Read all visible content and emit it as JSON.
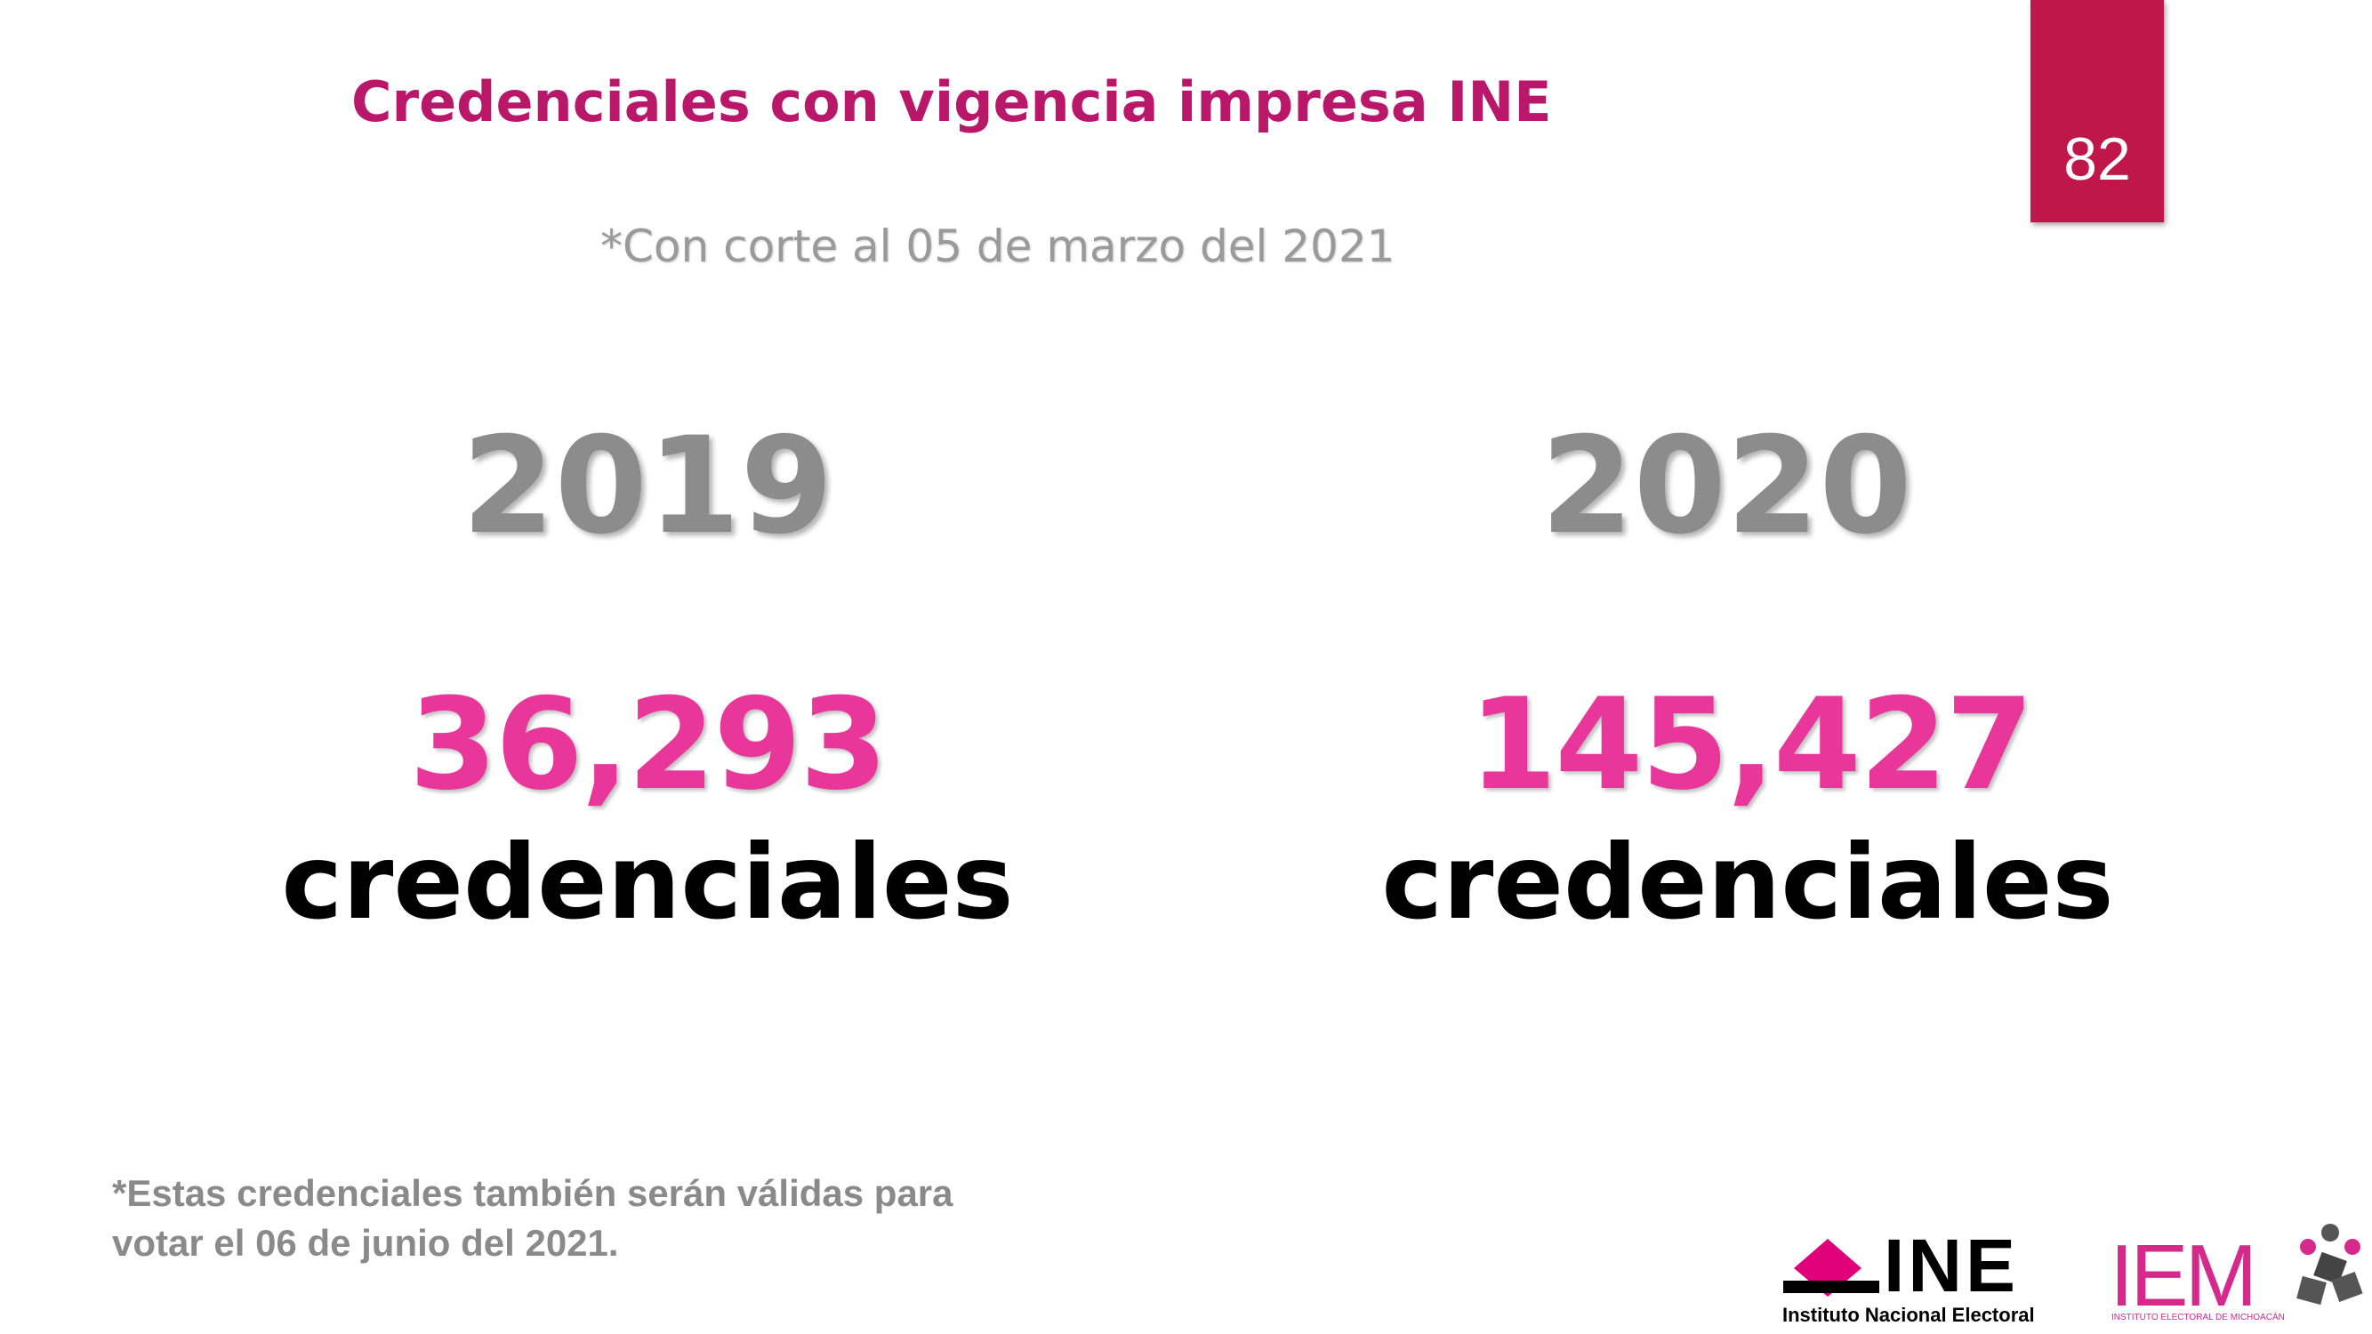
{
  "header": {
    "title": "Credenciales con vigencia impresa INE",
    "subtitle": "*Con corte al 05 de marzo del 2021",
    "page_number": "82"
  },
  "columns": [
    {
      "year": "2019",
      "amount": "36,293",
      "unit": "credenciales"
    },
    {
      "year": "2020",
      "amount": "145,427",
      "unit": "credenciales"
    }
  ],
  "footnote": {
    "lines": [
      "*Estas credenciales también serán válidas para",
      "votar el 06 de junio del 2021."
    ]
  },
  "logos": {
    "ine": {
      "name": "INE",
      "caption": "Instituto Nacional Electoral"
    },
    "iem": {
      "name": "IEM",
      "caption": "INSTITUTO ELECTORAL DE MICHOACÁN"
    }
  }
}
